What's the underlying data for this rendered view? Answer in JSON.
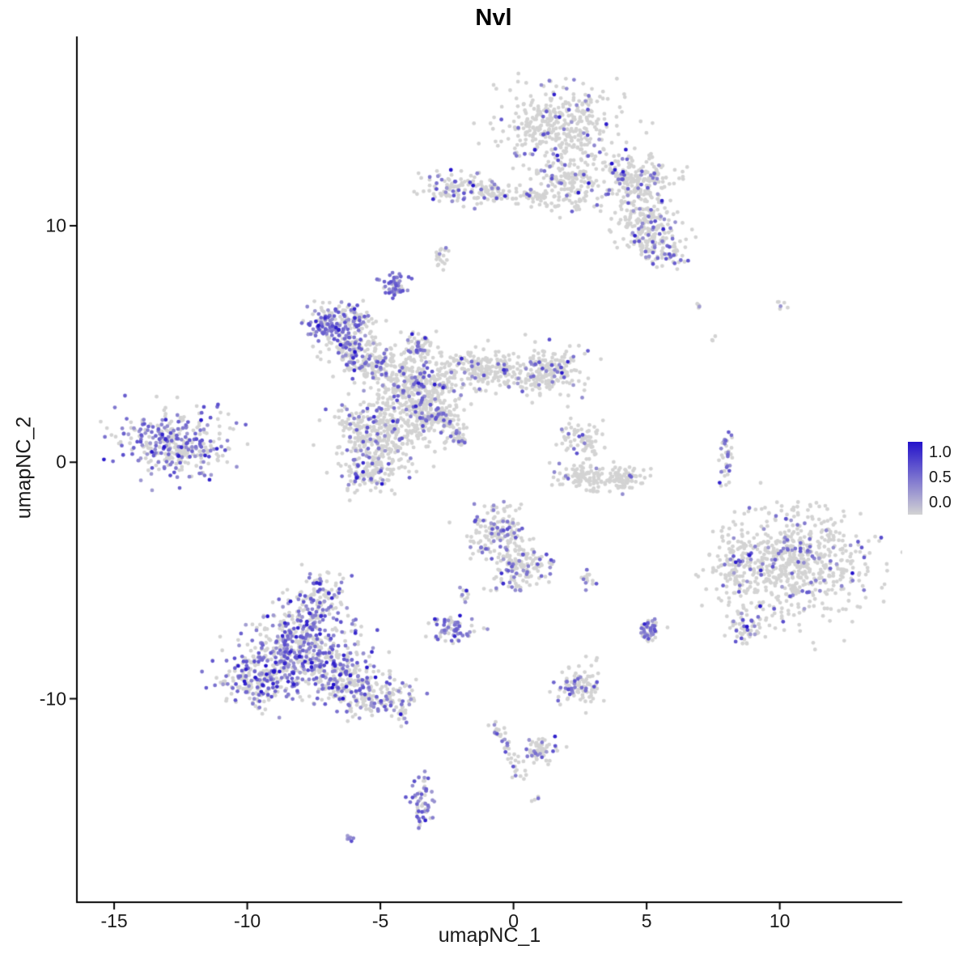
{
  "chart_data": {
    "type": "scatter",
    "variant": "umap-feature-expression-plot",
    "title": "Nvl",
    "xlabel": "umapNC_1",
    "ylabel": "umapNC_2",
    "x_range": [
      -16.4,
      14.6
    ],
    "y_range": [
      -18.6,
      18.0
    ],
    "x_ticks": [
      {
        "value": -15,
        "label": "-15"
      },
      {
        "value": -10,
        "label": "-10"
      },
      {
        "value": -5,
        "label": "-5"
      },
      {
        "value": 0,
        "label": "0"
      },
      {
        "value": 5,
        "label": "5"
      },
      {
        "value": 10,
        "label": "10"
      }
    ],
    "y_ticks": [
      {
        "value": 10,
        "label": "10"
      },
      {
        "value": 0,
        "label": "0"
      },
      {
        "value": -10,
        "label": "-10"
      }
    ],
    "legend_labels": [
      "1.0",
      "0.5",
      "0.0"
    ],
    "legend_values": [
      1.0,
      0.5,
      0.0
    ],
    "color_low": "#d3d3d3",
    "color_high": "#2312cb",
    "background": "#ffffff",
    "point_radius": 2.4,
    "expr_mid_range": [
      0.28,
      0.7
    ],
    "expr_high_range": [
      0.85,
      1.0
    ],
    "expr_high_share": 0.08,
    "clusters": [
      {
        "name": "top-main",
        "x": 1.8,
        "y": 14.3,
        "sx": 1.1,
        "sy": 0.85,
        "n": 380,
        "frac": 0.12
      },
      {
        "name": "top-main-lower",
        "x": 2.1,
        "y": 11.8,
        "sx": 0.6,
        "sy": 0.6,
        "n": 160,
        "frac": 0.08
      },
      {
        "name": "top-right",
        "x": 4.6,
        "y": 11.9,
        "sx": 0.75,
        "sy": 0.55,
        "n": 220,
        "frac": 0.18
      },
      {
        "name": "top-right-arm",
        "x": 4.9,
        "y": 10.0,
        "sx": 0.6,
        "sy": 0.6,
        "n": 170,
        "frac": 0.15
      },
      {
        "name": "top-right-tip",
        "x": 5.6,
        "y": 8.9,
        "sx": 0.5,
        "sy": 0.4,
        "n": 70,
        "frac": 0.2
      },
      {
        "name": "top-bridge",
        "line": [
          -1.0,
          11.4,
          1.3,
          11.2
        ],
        "w": 0.18,
        "n": 60,
        "frac": 0.06
      },
      {
        "name": "top-left-a",
        "x": -2.6,
        "y": 11.6,
        "sx": 0.45,
        "sy": 0.35,
        "n": 70,
        "frac": 0.3
      },
      {
        "name": "top-left-b",
        "x": -1.3,
        "y": 11.5,
        "sx": 0.45,
        "sy": 0.35,
        "n": 60,
        "frac": 0.15
      },
      {
        "name": "tiny-mid-upper",
        "x": -2.7,
        "y": 8.7,
        "sx": 0.12,
        "sy": 0.3,
        "n": 22,
        "frac": 0.15
      },
      {
        "name": "small-purple-knot",
        "x": -4.5,
        "y": 7.45,
        "sx": 0.22,
        "sy": 0.28,
        "n": 55,
        "frac": 0.6
      },
      {
        "name": "branch-nw-lobe",
        "x": -6.9,
        "y": 5.8,
        "sx": 0.45,
        "sy": 0.38,
        "n": 130,
        "frac": 0.55
      },
      {
        "name": "branch-nw-spur",
        "x": -5.8,
        "y": 6.2,
        "sx": 0.3,
        "sy": 0.25,
        "n": 50,
        "frac": 0.25
      },
      {
        "name": "branch-upper",
        "x": -6.1,
        "y": 4.9,
        "sx": 0.5,
        "sy": 0.45,
        "n": 130,
        "frac": 0.3
      },
      {
        "name": "branch-upper2",
        "x": -5.3,
        "y": 4.2,
        "sx": 0.6,
        "sy": 0.45,
        "n": 150,
        "frac": 0.25
      },
      {
        "name": "branch-top-node",
        "x": -3.6,
        "y": 4.9,
        "sx": 0.3,
        "sy": 0.25,
        "n": 60,
        "frac": 0.3
      },
      {
        "name": "branch-core",
        "x": -3.6,
        "y": 3.4,
        "sx": 0.75,
        "sy": 0.6,
        "n": 300,
        "frac": 0.18
      },
      {
        "name": "branch-core-low",
        "x": -3.4,
        "y": 1.9,
        "sx": 0.7,
        "sy": 0.6,
        "n": 220,
        "frac": 0.15
      },
      {
        "name": "branch-sw-lobe",
        "x": -5.3,
        "y": 1.2,
        "sx": 0.75,
        "sy": 0.7,
        "n": 300,
        "frac": 0.18
      },
      {
        "name": "branch-sw-tip",
        "x": -5.4,
        "y": -0.5,
        "sx": 0.55,
        "sy": 0.4,
        "n": 120,
        "frac": 0.18
      },
      {
        "name": "branch-east-arm",
        "x": -1.1,
        "y": 3.9,
        "sx": 0.8,
        "sy": 0.45,
        "n": 200,
        "frac": 0.12
      },
      {
        "name": "branch-east-arm2",
        "x": 1.3,
        "y": 3.8,
        "sx": 0.7,
        "sy": 0.5,
        "n": 200,
        "frac": 0.12
      },
      {
        "name": "branch-diag-streak",
        "line": [
          -2.8,
          2.2,
          -1.9,
          0.8
        ],
        "w": 0.12,
        "n": 70,
        "frac": 0.35
      },
      {
        "name": "left-cluster",
        "x": -12.7,
        "y": 0.9,
        "sx": 1.05,
        "sy": 0.68,
        "n": 340,
        "frac": 0.45
      },
      {
        "name": "crescent-upper",
        "x": 2.6,
        "y": 1.0,
        "sx": 0.4,
        "sy": 0.3,
        "n": 70,
        "frac": 0.1
      },
      {
        "name": "crescent-low-a",
        "x": 2.6,
        "y": -0.6,
        "sx": 0.5,
        "sy": 0.3,
        "n": 90,
        "frac": 0.06
      },
      {
        "name": "crescent-low-b",
        "x": 3.9,
        "y": -0.7,
        "sx": 0.55,
        "sy": 0.3,
        "n": 90,
        "frac": 0.06
      },
      {
        "name": "right-streak",
        "x": 8.0,
        "y": 0.2,
        "sx": 0.16,
        "sy": 0.5,
        "n": 40,
        "frac": 0.35
      },
      {
        "name": "dot-a",
        "x": 7.0,
        "y": 6.6,
        "sx": 0.1,
        "sy": 0.1,
        "n": 5,
        "frac": 0.2
      },
      {
        "name": "dot-b",
        "x": 10.05,
        "y": 6.6,
        "sx": 0.12,
        "sy": 0.1,
        "n": 6,
        "frac": 0.1
      },
      {
        "name": "dot-c",
        "x": 7.6,
        "y": 5.3,
        "sx": 0.1,
        "sy": 0.08,
        "n": 3,
        "frac": 0
      },
      {
        "name": "right-cluster",
        "x": 10.7,
        "y": -4.3,
        "sx": 1.25,
        "sy": 1.15,
        "n": 620,
        "frac": 0.13
      },
      {
        "name": "right-cluster-west",
        "x": 8.3,
        "y": -4.3,
        "sx": 0.45,
        "sy": 0.75,
        "n": 110,
        "frac": 0.2
      },
      {
        "name": "right-cluster-spur",
        "x": 8.8,
        "y": -6.9,
        "sx": 0.35,
        "sy": 0.4,
        "n": 60,
        "frac": 0.25
      },
      {
        "name": "center-bottom-up",
        "x": -0.6,
        "y": -2.9,
        "sx": 0.55,
        "sy": 0.5,
        "n": 140,
        "frac": 0.3
      },
      {
        "name": "center-bottom-low",
        "x": 0.3,
        "y": -4.4,
        "sx": 0.6,
        "sy": 0.5,
        "n": 160,
        "frac": 0.25
      },
      {
        "name": "tiny-mid",
        "x": 2.8,
        "y": -5.0,
        "sx": 0.15,
        "sy": 0.18,
        "n": 14,
        "frac": 0.3
      },
      {
        "name": "small-mid-left",
        "x": -2.3,
        "y": -7.0,
        "sx": 0.38,
        "sy": 0.33,
        "n": 70,
        "frac": 0.5
      },
      {
        "name": "tiny-mid-left",
        "x": -1.9,
        "y": -5.5,
        "sx": 0.15,
        "sy": 0.15,
        "n": 10,
        "frac": 0.2
      },
      {
        "name": "botleft-main",
        "x": -8.0,
        "y": -7.9,
        "sx": 1.0,
        "sy": 0.95,
        "n": 520,
        "frac": 0.5
      },
      {
        "name": "botleft-west",
        "x": -9.7,
        "y": -9.2,
        "sx": 0.6,
        "sy": 0.55,
        "n": 170,
        "frac": 0.45
      },
      {
        "name": "botleft-east",
        "x": -6.3,
        "y": -9.3,
        "sx": 0.75,
        "sy": 0.6,
        "n": 220,
        "frac": 0.35
      },
      {
        "name": "botleft-tail",
        "x": -4.8,
        "y": -10.1,
        "sx": 0.6,
        "sy": 0.4,
        "n": 110,
        "frac": 0.3
      },
      {
        "name": "botleft-top-spur",
        "x": -7.2,
        "y": -5.6,
        "sx": 0.5,
        "sy": 0.55,
        "n": 100,
        "frac": 0.4
      },
      {
        "name": "small-bottom-mid",
        "x": 2.5,
        "y": -9.5,
        "sx": 0.42,
        "sy": 0.4,
        "n": 100,
        "frac": 0.3
      },
      {
        "name": "small-right-mid",
        "x": 5.1,
        "y": -7.1,
        "sx": 0.2,
        "sy": 0.3,
        "n": 50,
        "frac": 0.5
      },
      {
        "name": "bottom-trail",
        "line": [
          -0.75,
          -10.9,
          0.3,
          -13.4
        ],
        "w": 0.15,
        "n": 45,
        "frac": 0.25
      },
      {
        "name": "bottom-blob",
        "x": 1.0,
        "y": -12.2,
        "sx": 0.35,
        "sy": 0.3,
        "n": 60,
        "frac": 0.25
      },
      {
        "name": "bottom-dot",
        "x": 0.77,
        "y": -14.2,
        "sx": 0.1,
        "sy": 0.1,
        "n": 4,
        "frac": 0.2
      },
      {
        "name": "bottom-column",
        "x": -3.45,
        "y": -14.2,
        "sx": 0.22,
        "sy": 0.6,
        "n": 60,
        "frac": 0.55
      },
      {
        "name": "bottom-left-dot",
        "x": -6.1,
        "y": -15.9,
        "sx": 0.12,
        "sy": 0.12,
        "n": 6,
        "frac": 0.5
      }
    ]
  }
}
